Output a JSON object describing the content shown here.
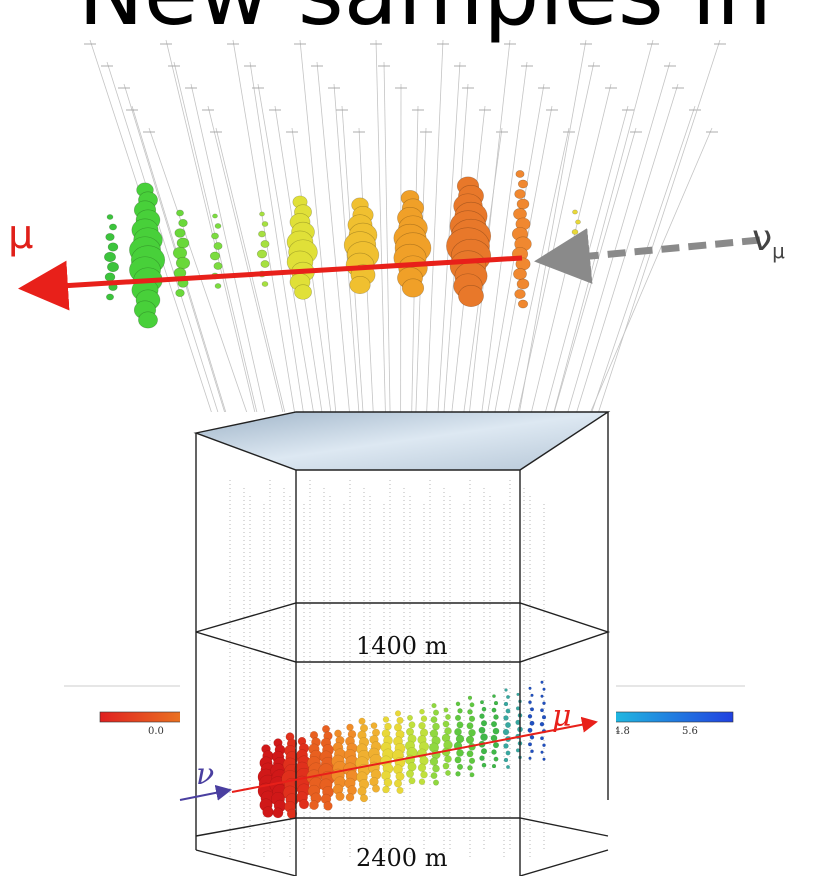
{
  "title": "New samples in",
  "upper_event": {
    "muon_label": "μ",
    "neutrino_label": "ν",
    "neutrino_sub": "μ",
    "colorbar_ticks": [
      "0.0",
      "4.8",
      "5.6"
    ]
  },
  "detector_diagram": {
    "depth_top": "1400 m",
    "depth_bottom": "2400 m",
    "neutrino_label": "ν",
    "muon_label": "μ"
  },
  "colors": {
    "muon_track": "#e8201a",
    "neutrino_arrow_upper": "#8a8a8a",
    "neutrino_arrow_lower": "#5a4fa8",
    "top_face": "#c8d8e8"
  }
}
